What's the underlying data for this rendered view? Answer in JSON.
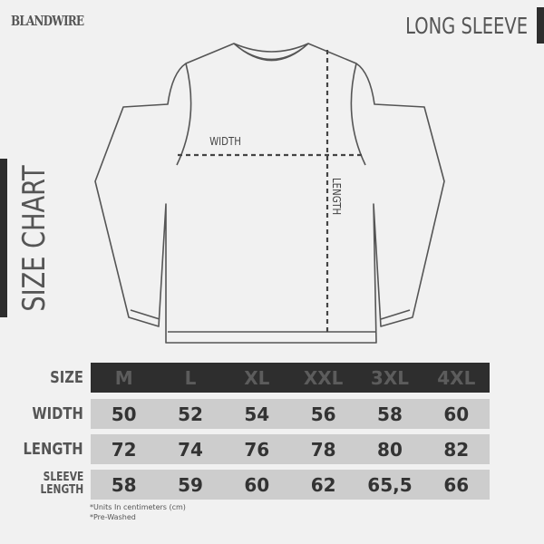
{
  "brand": {
    "logo_text": "BLANDWIRE"
  },
  "title": "LONG SLEEVE",
  "side_title": "SIZE CHART",
  "diagram": {
    "width_label": "WIDTH",
    "length_label": "LENGTH"
  },
  "table": {
    "header_label": "SIZE",
    "sizes": [
      "M",
      "L",
      "XL",
      "XXL",
      "3XL",
      "4XL"
    ],
    "rows": [
      {
        "label": "WIDTH",
        "values": [
          "50",
          "52",
          "54",
          "56",
          "58",
          "60"
        ]
      },
      {
        "label": "LENGTH",
        "values": [
          "72",
          "74",
          "76",
          "78",
          "80",
          "82"
        ]
      },
      {
        "label_line1": "SLEEVE",
        "label_line2": "LENGTH",
        "values": [
          "58",
          "59",
          "60",
          "62",
          "65,5",
          "66"
        ]
      }
    ]
  },
  "notes": [
    "*Units In centimeters (cm)",
    "*Pre-Washed"
  ],
  "colors": {
    "dark": "#2e2e2e",
    "row": "#cdcdcd",
    "text": "#555555"
  }
}
